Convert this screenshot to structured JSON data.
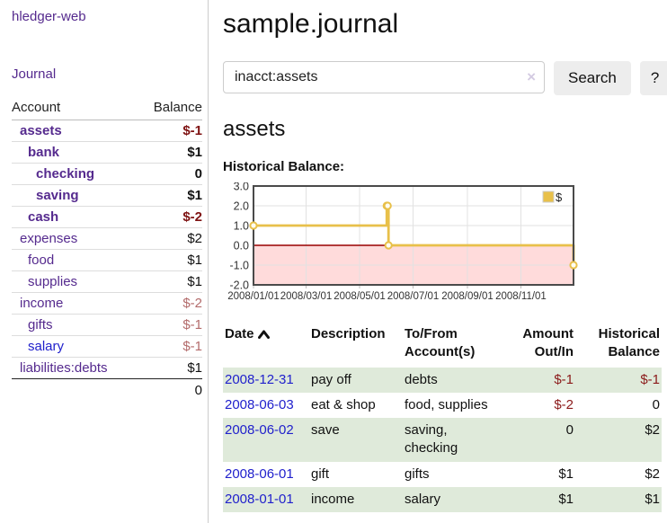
{
  "palette": {
    "link_purple": "#552a8e",
    "link_blue": "#2121cc",
    "negative_strong": "#7e1212",
    "negative_soft": "#b36b6b",
    "table_negative": "#8b1a1a",
    "row_green": "#dfeada"
  },
  "sidebar": {
    "app_title": "hledger-web",
    "nav": {
      "journal_label": "Journal"
    },
    "accounts_table": {
      "headers": {
        "account": "Account",
        "balance": "Balance"
      },
      "rows": [
        {
          "label": "assets",
          "indent": 1,
          "bold": true,
          "balance": "$-1"
        },
        {
          "label": "bank",
          "indent": 2,
          "bold": true,
          "balance": "$1"
        },
        {
          "label": "checking",
          "indent": 3,
          "bold": true,
          "balance": "0"
        },
        {
          "label": "saving",
          "indent": 3,
          "bold": true,
          "balance": "$1"
        },
        {
          "label": "cash",
          "indent": 2,
          "bold": true,
          "balance": "$-2"
        },
        {
          "label": "expenses",
          "indent": 1,
          "bold": false,
          "balance": "$2"
        },
        {
          "label": "food",
          "indent": 2,
          "bold": false,
          "balance": "$1"
        },
        {
          "label": "supplies",
          "indent": 2,
          "bold": false,
          "balance": "$1"
        },
        {
          "label": "income",
          "indent": 1,
          "bold": false,
          "balance": "$-2"
        },
        {
          "label": "gifts",
          "indent": 2,
          "bold": false,
          "balance": "$-1"
        },
        {
          "label": "salary",
          "indent": 2,
          "bold": false,
          "balance": "$-1",
          "unvisited": true
        },
        {
          "label": "liabilities:debts",
          "indent": 1,
          "bold": false,
          "balance": "$1"
        }
      ],
      "total": "0"
    }
  },
  "main": {
    "title": "sample.journal",
    "search": {
      "value": "inacct:assets",
      "clear_icon": "×",
      "search_button": "Search",
      "help_button": "?"
    },
    "account_heading": "assets",
    "chart_heading": "Historical Balance:"
  },
  "chart_data": {
    "type": "line",
    "step": "after",
    "title": "Historical Balance",
    "legend": [
      {
        "label": "$",
        "color": "#e8c04a"
      }
    ],
    "legend_position": "top-right",
    "x": [
      "2008-01-01",
      "2008-06-01",
      "2008-06-02",
      "2008-06-03",
      "2008-12-31"
    ],
    "values": [
      1,
      2,
      2,
      0,
      -1
    ],
    "ylim": [
      -2,
      3
    ],
    "yticks": [
      "3.0",
      "2.0",
      "1.0",
      "0.0",
      "-1.0",
      "-2.0"
    ],
    "xticks": [
      "2008/01/01",
      "2008/03/01",
      "2008/05/01",
      "2008/07/01",
      "2008/09/01",
      "2008/11/01"
    ],
    "grid": true,
    "line_color": "#e8c04a",
    "marker_fill": "#fffdf2",
    "zero_line_color": "#990000",
    "negative_region_color": "#ffdbdb",
    "border_color": "#4a4a4a"
  },
  "table": {
    "headers": [
      "Date",
      "Description",
      "To/From Account(s)",
      "Amount Out/In",
      "Historical Balance"
    ],
    "sort": {
      "column": "Date",
      "direction": "ascending"
    },
    "rows": [
      {
        "date": "2008-12-31",
        "description": "pay off",
        "accounts": "debts",
        "amount": "$-1",
        "historical": "$-1"
      },
      {
        "date": "2008-06-03",
        "description": "eat & shop",
        "accounts": "food, supplies",
        "amount": "$-2",
        "historical": "0"
      },
      {
        "date": "2008-06-02",
        "description": "save",
        "accounts": "saving, checking",
        "amount": "0",
        "historical": "$2"
      },
      {
        "date": "2008-06-01",
        "description": "gift",
        "accounts": "gifts",
        "amount": "$1",
        "historical": "$2"
      },
      {
        "date": "2008-01-01",
        "description": "income",
        "accounts": "salary",
        "amount": "$1",
        "historical": "$1"
      }
    ]
  }
}
